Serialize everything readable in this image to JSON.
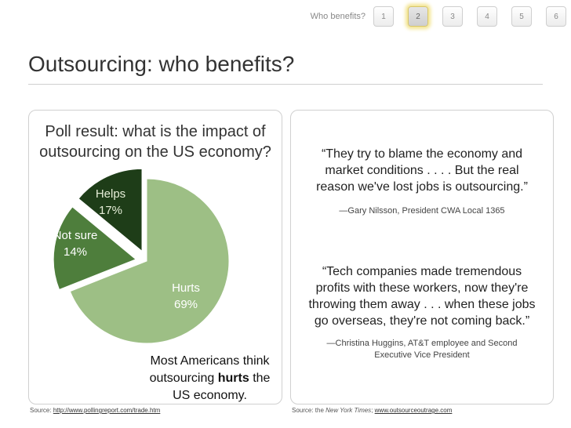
{
  "nav": {
    "label": "Who benefits?",
    "pages": [
      "1",
      "2",
      "3",
      "4",
      "5",
      "6"
    ],
    "current": "2"
  },
  "title": "Outsourcing: who benefits?",
  "poll": {
    "title_line1": "Poll result: what is the impact of",
    "title_line2": "outsourcing on the US economy?",
    "summary_pre": "Most Americans think outsourcing",
    "summary_bold": "hurts",
    "summary_post": "the US economy.",
    "source_prefix": "Source:",
    "source_link": "http://www.pollingreport.com/trade.htm"
  },
  "chart_data": {
    "type": "pie",
    "slices": [
      {
        "label": "Hurts",
        "value": 69,
        "display": "69%",
        "color": "#9dbf85"
      },
      {
        "label": "Helps",
        "value": 17,
        "display": "17%",
        "color": "#4e7e3c"
      },
      {
        "label": "Not sure",
        "value": 14,
        "display": "14%",
        "color": "#1e3d18"
      }
    ]
  },
  "quotes": [
    {
      "line1": "“They try to blame the economy and",
      "line2": "market conditions . . . . But the real",
      "line3": "reason we've lost jobs is outsourcing.”",
      "attr1": "—Gary Nilsson, President CWA Local 1365"
    },
    {
      "line1": "“Tech companies made tremendous",
      "line2": "profits with these workers, now they're",
      "line3": "throwing them away . . . when these jobs",
      "line4": "go overseas, they're not coming back.”",
      "attr1": "—Christina Huggins, AT&T employee and Second",
      "attr2": "Executive Vice President"
    }
  ],
  "right_source": {
    "prefix": "Source: the",
    "publication": "New York Times",
    "sep": ";",
    "link": "www.outsourceoutrage.com"
  }
}
